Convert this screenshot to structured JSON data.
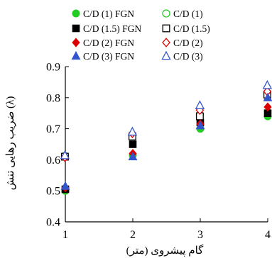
{
  "chart_data": {
    "type": "scatter",
    "title": "",
    "xlabel": "گام پیشروی (متر)",
    "ylabel": "ضریب رهایی تنش (λ)",
    "xlim": [
      1,
      4
    ],
    "ylim": [
      0.4,
      0.9
    ],
    "x_ticks": [
      "1",
      "2",
      "3",
      "4"
    ],
    "y_ticks": [
      "0.4",
      "0.5",
      "0.6",
      "0.7",
      "0.8",
      "0.9"
    ],
    "grid": false,
    "legend_position": "top",
    "series": [
      {
        "name": "C/D (1) FGN",
        "marker": "circle",
        "filled": true,
        "color": "#22cc22",
        "x": [
          1,
          2,
          3,
          4
        ],
        "y": [
          0.5,
          0.615,
          0.7,
          0.74
        ]
      },
      {
        "name": "C/D (1)",
        "marker": "circle",
        "filled": false,
        "color": "#22cc22",
        "x": [
          1,
          2,
          3,
          4
        ],
        "y": [
          0.612,
          0.68,
          0.745,
          0.815
        ]
      },
      {
        "name": "C/D (1.5) FGN",
        "marker": "square",
        "filled": true,
        "color": "#000000",
        "x": [
          1,
          2,
          3,
          4
        ],
        "y": [
          0.505,
          0.65,
          0.72,
          0.75
        ]
      },
      {
        "name": "C/D (1.5)",
        "marker": "square",
        "filled": false,
        "color": "#000000",
        "x": [
          1,
          2,
          3,
          4
        ],
        "y": [
          0.61,
          0.675,
          0.74,
          0.81
        ]
      },
      {
        "name": "C/D (2) FGN",
        "marker": "diamond",
        "filled": true,
        "color": "#dd0000",
        "x": [
          1,
          2,
          3,
          4
        ],
        "y": [
          0.51,
          0.62,
          0.715,
          0.77
        ]
      },
      {
        "name": "C/D (2)",
        "marker": "diamond",
        "filled": false,
        "color": "#dd0000",
        "x": [
          1,
          2,
          3,
          4
        ],
        "y": [
          0.608,
          0.685,
          0.76,
          0.82
        ]
      },
      {
        "name": "C/D (3) FGN",
        "marker": "triangle",
        "filled": true,
        "color": "#3355cc",
        "x": [
          1,
          2,
          3,
          4
        ],
        "y": [
          0.515,
          0.61,
          0.71,
          0.8
        ]
      },
      {
        "name": "C/D (3)",
        "marker": "triangle",
        "filled": false,
        "color": "#3355cc",
        "x": [
          1,
          2,
          3,
          4
        ],
        "y": [
          0.614,
          0.69,
          0.775,
          0.84
        ]
      }
    ]
  }
}
